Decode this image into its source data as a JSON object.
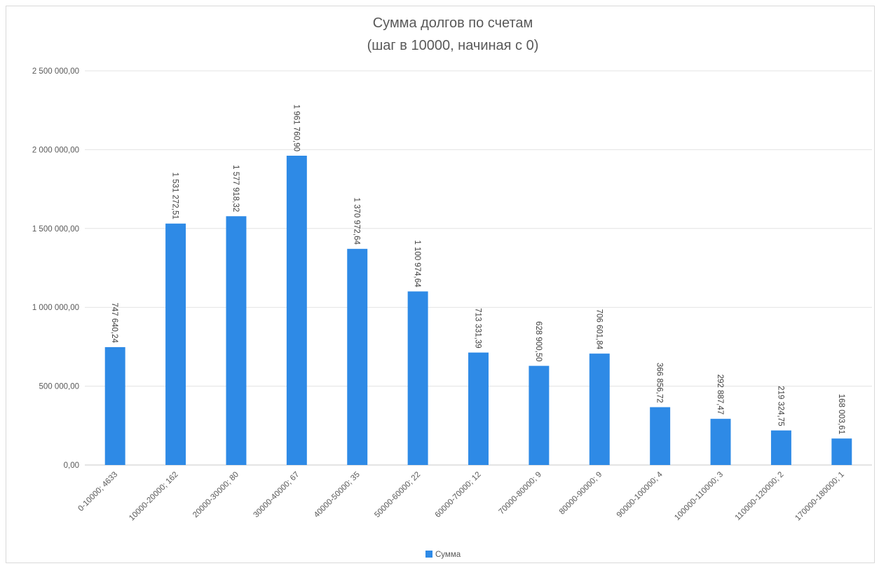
{
  "chart_data": {
    "type": "bar",
    "title": "Сумма долгов по счетам",
    "subtitle": "(шаг в 10000, начиная с 0)",
    "categories": [
      "0-10000; 4633",
      "10000-20000; 162",
      "20000-30000; 80",
      "30000-40000; 67",
      "40000-50000; 35",
      "50000-60000; 22",
      "60000-70000; 12",
      "70000-80000; 9",
      "80000-90000; 9",
      "90000-100000; 4",
      "100000-110000; 3",
      "110000-120000; 2",
      "170000-180000; 1"
    ],
    "series": [
      {
        "name": "Сумма",
        "color": "#2e8ae6",
        "values": [
          747640.24,
          1531272.51,
          1577918.32,
          1961760.9,
          1370972.64,
          1100974.64,
          713331.39,
          628900.5,
          706601.84,
          366856.72,
          292887.47,
          219324.75,
          168003.61
        ],
        "value_labels": [
          "747 640,24",
          "1 531 272,51",
          "1 577 918,32",
          "1 961 760,90",
          "1 370 972,64",
          "1 100 974,64",
          "713 331,39",
          "628 900,50",
          "706 601,84",
          "366 856,72",
          "292 887,47",
          "219 324,75",
          "168 003,61"
        ]
      }
    ],
    "y_ticks": [
      0,
      500000,
      1000000,
      1500000,
      2000000,
      2500000
    ],
    "y_tick_labels": [
      "0,00",
      "500 000,00",
      "1 000 000,00",
      "1 500 000,00",
      "2 000 000,00",
      "2 500 000,00"
    ],
    "ylim": [
      0,
      2500000
    ],
    "grid": true,
    "legend_position": "bottom",
    "xlabel": "",
    "ylabel": ""
  }
}
